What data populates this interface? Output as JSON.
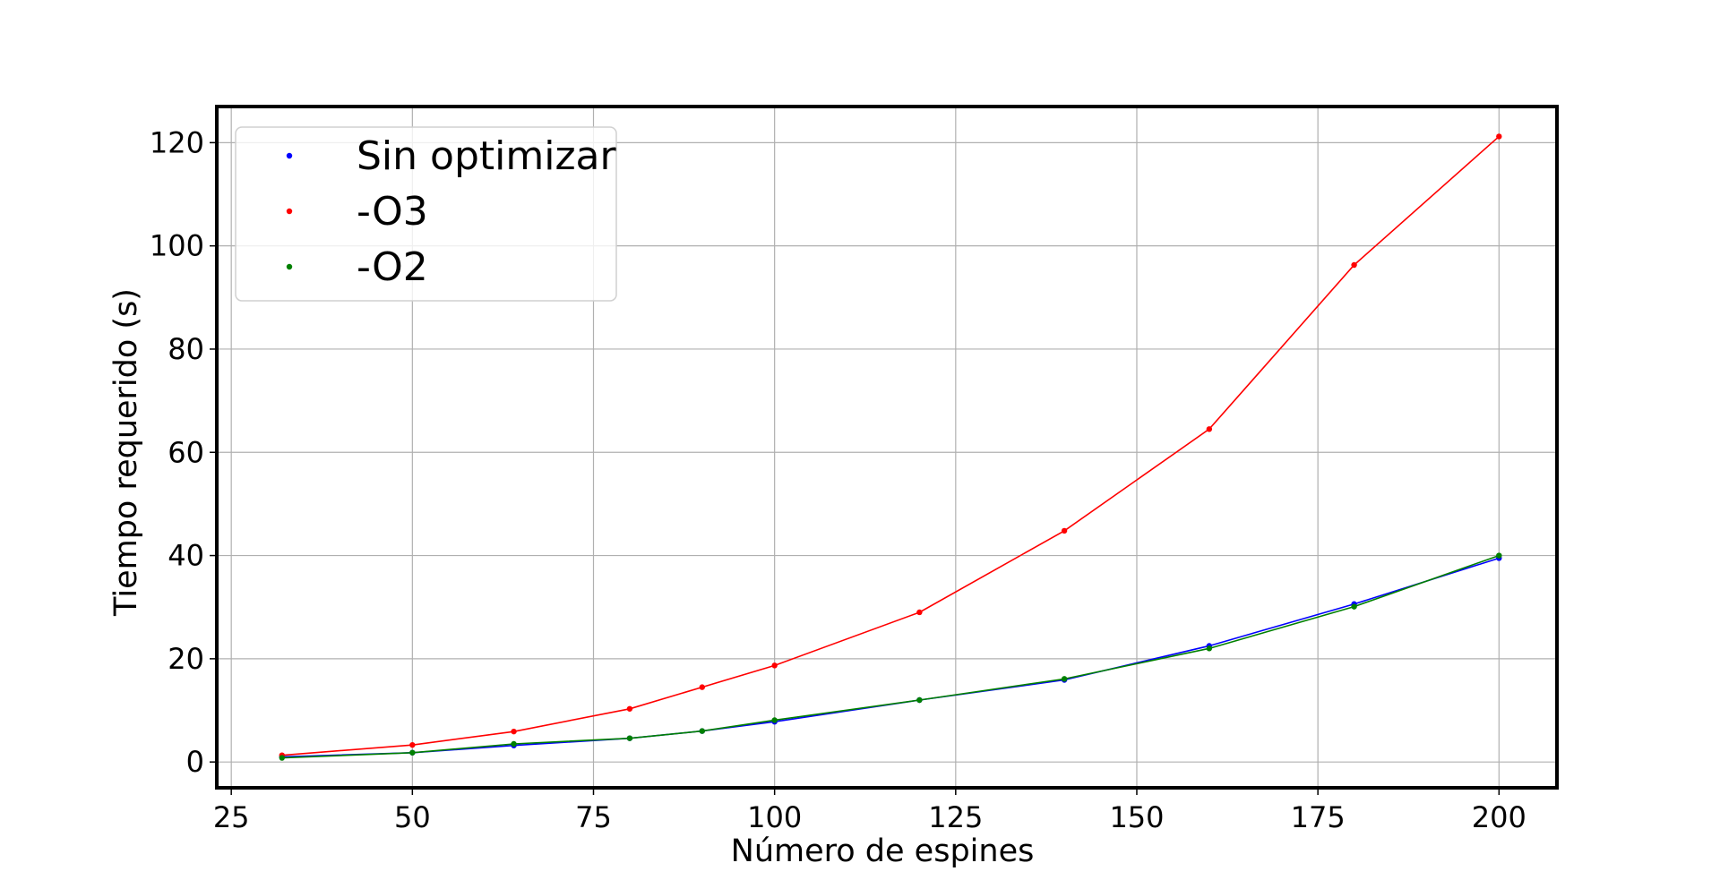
{
  "chart_data": {
    "type": "line",
    "xlabel": "Número de espines",
    "ylabel": "Tiempo requerido (s)",
    "xlim": [
      23,
      208
    ],
    "ylim": [
      -5,
      127
    ],
    "xticks": [
      25,
      50,
      75,
      100,
      125,
      150,
      175,
      200
    ],
    "yticks": [
      0,
      20,
      40,
      60,
      80,
      100,
      120
    ],
    "grid": true,
    "legend_position": "top-left",
    "series": [
      {
        "name": "Sin optimizar",
        "color": "#0000ff",
        "x": [
          32,
          50,
          64,
          80,
          90,
          100,
          120,
          140,
          160,
          180,
          200
        ],
        "y": [
          1.0,
          1.8,
          3.2,
          4.6,
          6.0,
          7.8,
          12.0,
          15.9,
          22.5,
          30.6,
          39.5
        ]
      },
      {
        "name": "-O3",
        "color": "#ff0000",
        "x": [
          32,
          50,
          64,
          80,
          90,
          100,
          120,
          140,
          160,
          180,
          200
        ],
        "y": [
          1.3,
          3.3,
          5.9,
          10.3,
          14.5,
          18.7,
          29.0,
          44.8,
          64.5,
          96.3,
          121.2
        ]
      },
      {
        "name": "-O2",
        "color": "#008000",
        "x": [
          32,
          50,
          64,
          80,
          90,
          100,
          120,
          140,
          160,
          180,
          200
        ],
        "y": [
          0.8,
          1.8,
          3.5,
          4.6,
          6.0,
          8.1,
          12.0,
          16.1,
          22.0,
          30.1,
          40.0
        ]
      }
    ]
  }
}
